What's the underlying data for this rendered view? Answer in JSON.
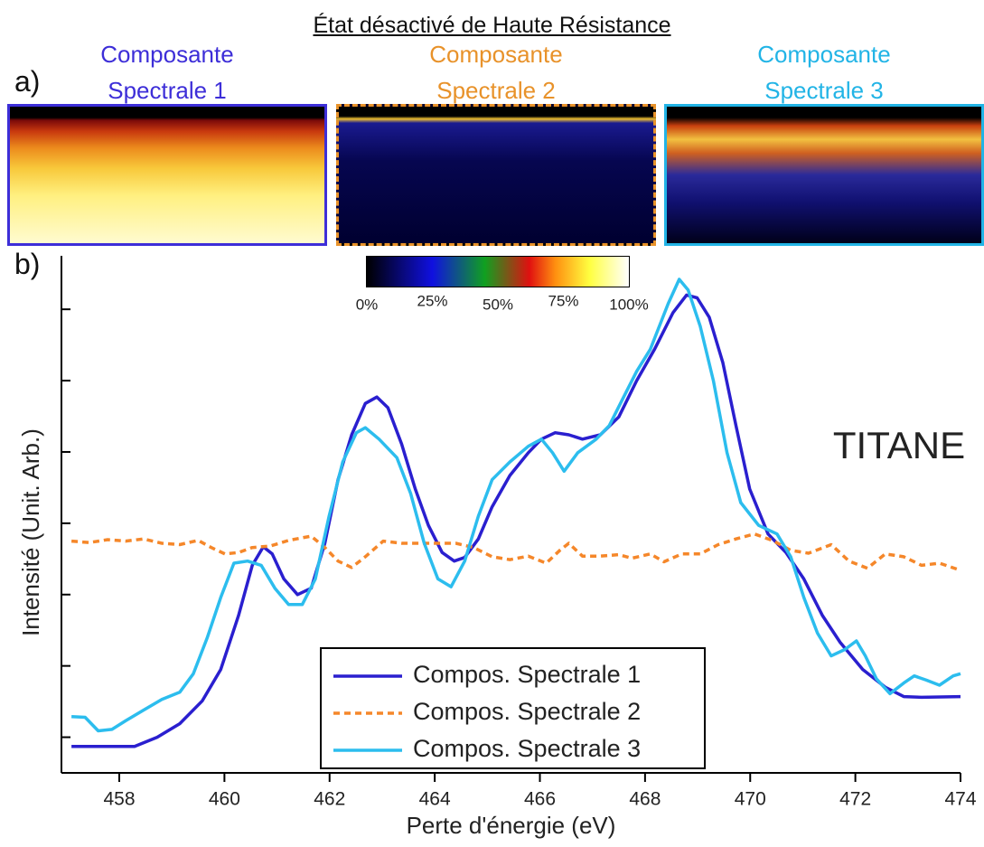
{
  "heading": "État désactivé de Haute Résistance",
  "panel_labels": [
    "a)",
    "b)"
  ],
  "panels": [
    {
      "label": "Composante Spectrale 1",
      "color": "#3d2ed8",
      "border_style": "solid"
    },
    {
      "label": "Composante Spectrale 2",
      "color": "#e8922a",
      "border_style": "dashed"
    },
    {
      "label": "Composante Spectrale 3",
      "color": "#22b4e6",
      "border_style": "solid"
    }
  ],
  "colorbar": {
    "lim": [
      0,
      100
    ],
    "ticks": [
      {
        "value": 0,
        "label": "0%"
      },
      {
        "value": 25,
        "label": "25%"
      },
      {
        "value": 50,
        "label": "50%"
      },
      {
        "value": 75,
        "label": "75%"
      },
      {
        "value": 100,
        "label": "100%"
      }
    ]
  },
  "chart_data": {
    "type": "line",
    "xlabel": "Perte d'énergie (eV)",
    "ylabel": "Intensité (Unit. Arb.)",
    "annotation": "TITANE",
    "xlim": [
      456.9,
      474
    ],
    "xticks": [
      458,
      460,
      462,
      464,
      466,
      468,
      470,
      472,
      474
    ],
    "ylim": [
      -0.5,
      6.75
    ],
    "yticks": [
      0,
      1,
      2,
      3,
      4,
      5,
      6
    ],
    "legend": "lower center",
    "series": [
      {
        "name": "Compos. Spectrale 1",
        "color": "#2a1fcf",
        "style": "solid",
        "x": [
          457.09,
          458.29,
          458.72,
          459.15,
          459.58,
          459.93,
          460.27,
          460.53,
          460.74,
          460.91,
          461.13,
          461.39,
          461.65,
          461.91,
          462.16,
          462.42,
          462.68,
          462.9,
          463.11,
          463.37,
          463.63,
          463.88,
          464.14,
          464.37,
          464.57,
          464.83,
          465.09,
          465.43,
          465.78,
          466.03,
          466.29,
          466.55,
          466.81,
          467.15,
          467.5,
          467.84,
          468.18,
          468.53,
          468.79,
          468.99,
          469.22,
          469.48,
          469.73,
          469.99,
          470.34,
          470.68,
          471.02,
          471.37,
          471.71,
          472.14,
          472.57,
          472.92,
          473.26,
          474.0
        ],
        "values": [
          -0.13,
          -0.13,
          0,
          0.19,
          0.51,
          0.95,
          1.71,
          2.41,
          2.67,
          2.57,
          2.22,
          2.0,
          2.09,
          2.72,
          3.61,
          4.24,
          4.68,
          4.77,
          4.62,
          4.11,
          3.48,
          2.97,
          2.59,
          2.47,
          2.52,
          2.78,
          3.23,
          3.67,
          3.99,
          4.18,
          4.27,
          4.24,
          4.18,
          4.24,
          4.49,
          5.0,
          5.44,
          5.95,
          6.2,
          6.16,
          5.89,
          5.25,
          4.37,
          3.48,
          2.85,
          2.59,
          2.22,
          1.71,
          1.33,
          0.95,
          0.7,
          0.57,
          0.56,
          0.57
        ]
      },
      {
        "name": "Compos. Spectrale 2",
        "color": "#f5872a",
        "style": "dashed",
        "x": [
          457.09,
          457.43,
          457.78,
          458.12,
          458.46,
          458.81,
          459.15,
          459.5,
          459.75,
          460.01,
          460.27,
          460.53,
          460.87,
          461.22,
          461.65,
          461.91,
          462.16,
          462.42,
          462.68,
          463.02,
          463.37,
          463.71,
          464.06,
          464.4,
          464.74,
          465.09,
          465.43,
          465.78,
          466.12,
          466.38,
          466.55,
          466.81,
          467.15,
          467.5,
          467.75,
          468.1,
          468.36,
          468.7,
          469.05,
          469.39,
          469.73,
          470.08,
          470.42,
          470.77,
          471.11,
          471.54,
          471.88,
          472.23,
          472.57,
          472.92,
          473.26,
          473.6,
          474.0
        ],
        "values": [
          2.75,
          2.73,
          2.77,
          2.75,
          2.78,
          2.72,
          2.7,
          2.76,
          2.66,
          2.57,
          2.59,
          2.66,
          2.68,
          2.76,
          2.82,
          2.66,
          2.47,
          2.38,
          2.53,
          2.75,
          2.72,
          2.72,
          2.72,
          2.72,
          2.66,
          2.53,
          2.49,
          2.54,
          2.44,
          2.62,
          2.72,
          2.54,
          2.54,
          2.56,
          2.51,
          2.57,
          2.46,
          2.57,
          2.57,
          2.7,
          2.78,
          2.85,
          2.76,
          2.62,
          2.58,
          2.7,
          2.47,
          2.37,
          2.57,
          2.53,
          2.41,
          2.44,
          2.34
        ]
      },
      {
        "name": "Compos. Spectrale 3",
        "color": "#2cbdee",
        "style": "solid",
        "x": [
          457.09,
          457.35,
          457.6,
          457.86,
          458.12,
          458.46,
          458.81,
          459.15,
          459.41,
          459.67,
          459.93,
          460.18,
          460.44,
          460.7,
          460.96,
          461.22,
          461.48,
          461.73,
          461.99,
          462.25,
          462.51,
          462.68,
          462.94,
          463.28,
          463.54,
          463.8,
          464.06,
          464.31,
          464.57,
          464.83,
          465.09,
          465.43,
          465.78,
          466.03,
          466.24,
          466.46,
          466.72,
          467.07,
          467.32,
          467.58,
          467.84,
          468.1,
          468.44,
          468.65,
          468.82,
          469.05,
          469.3,
          469.56,
          469.82,
          470.16,
          470.51,
          470.77,
          471.02,
          471.28,
          471.54,
          471.8,
          472.02,
          472.19,
          472.4,
          472.66,
          472.92,
          473.12,
          473.35,
          473.6,
          473.86,
          474.0
        ],
        "values": [
          0.29,
          0.28,
          0.09,
          0.11,
          0.23,
          0.38,
          0.53,
          0.63,
          0.89,
          1.39,
          1.96,
          2.44,
          2.47,
          2.41,
          2.09,
          1.86,
          1.86,
          2.22,
          3.1,
          3.86,
          4.27,
          4.34,
          4.18,
          3.92,
          3.42,
          2.72,
          2.22,
          2.11,
          2.47,
          3.1,
          3.61,
          3.86,
          4.08,
          4.18,
          3.99,
          3.73,
          3.99,
          4.18,
          4.37,
          4.75,
          5.13,
          5.44,
          6.08,
          6.42,
          6.27,
          5.76,
          5.0,
          3.99,
          3.29,
          2.97,
          2.85,
          2.53,
          1.96,
          1.46,
          1.14,
          1.23,
          1.35,
          1.14,
          0.82,
          0.61,
          0.76,
          0.86,
          0.8,
          0.73,
          0.86,
          0.89
        ]
      }
    ]
  }
}
